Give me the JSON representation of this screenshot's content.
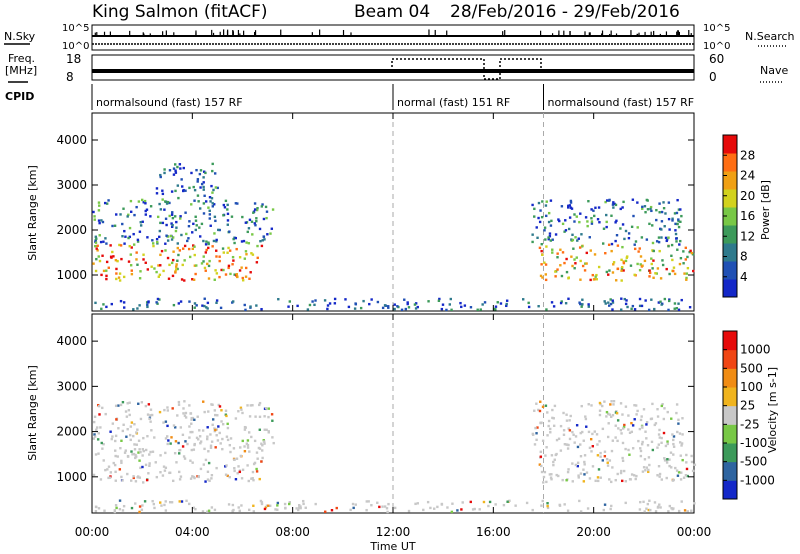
{
  "header": {
    "station": "King Salmon (fitACF)",
    "beam": "Beam 04",
    "date_range": "28/Feb/2016 - 29/Feb/2016"
  },
  "param_labels": {
    "nsky": "N.Sky",
    "nsearch": "N.Search",
    "freq_line1": "Freq.",
    "freq_line2": "[MHz]",
    "nave": "Nave",
    "cpid": "CPID"
  },
  "param_ticks": {
    "nsky_top": "10^5",
    "nsky_bottom": "10^0",
    "nsearch_top": "10^5",
    "nsearch_bottom": "10^0",
    "freq_top": "18",
    "freq_bottom": "8",
    "nave_top": "60",
    "nave_bottom": "0"
  },
  "cpid_segments": [
    {
      "label": "normalsound (fast) 157 RF",
      "start_h": 0,
      "end_h": 12
    },
    {
      "label": "normal (fast) 151 RF",
      "start_h": 12,
      "end_h": 18
    },
    {
      "label": "normalsound (fast) 157 RF",
      "start_h": 18,
      "end_h": 24
    }
  ],
  "axes": {
    "x_label": "Time UT",
    "x_ticks": [
      "00:00",
      "04:00",
      "08:00",
      "12:00",
      "16:00",
      "20:00",
      "00:00"
    ],
    "y_label": "Slant Range [km]",
    "y_ticks": [
      "1000",
      "2000",
      "3000",
      "4000"
    ]
  },
  "chart_data": [
    {
      "type": "heatmap",
      "name_panel": "power",
      "xlabel": "",
      "ylabel": "Slant Range [km]",
      "xlim_hours": [
        0,
        24
      ],
      "ylim": [
        200,
        4600
      ],
      "colorbar_label": "Power [dB]",
      "colorbar_ticks": [
        "4",
        "8",
        "12",
        "16",
        "20",
        "24",
        "28"
      ],
      "colorbar_range": [
        0,
        32
      ],
      "colorbar_colors": [
        "#1428c8",
        "#2050b4",
        "#2e7a8c",
        "#3c9a5a",
        "#78c846",
        "#d2d21e",
        "#f0a014",
        "#ff6e14",
        "#e60a0a"
      ],
      "scatter_regions": [
        {
          "start_h": 0.0,
          "end_h": 6.8,
          "range_low": 900,
          "range_high": 1700,
          "level": 0.72
        },
        {
          "start_h": 0.0,
          "end_h": 7.2,
          "range_low": 1700,
          "range_high": 2700,
          "level": 0.25
        },
        {
          "start_h": 2.5,
          "end_h": 5.0,
          "range_low": 2700,
          "range_high": 3500,
          "level": 0.2
        },
        {
          "start_h": 17.8,
          "end_h": 24.0,
          "range_low": 900,
          "range_high": 1700,
          "level": 0.65
        },
        {
          "start_h": 17.5,
          "end_h": 23.5,
          "range_low": 1700,
          "range_high": 2700,
          "level": 0.22
        },
        {
          "start_h": 0.0,
          "end_h": 24.0,
          "range_low": 250,
          "range_high": 500,
          "level": 0.15
        }
      ]
    },
    {
      "type": "heatmap",
      "name_panel": "velocity",
      "xlabel": "Time UT",
      "ylabel": "Slant Range [km]",
      "xlim_hours": [
        0,
        24
      ],
      "ylim": [
        200,
        4600
      ],
      "colorbar_label": "Velocity [m s-1]",
      "colorbar_ticks": [
        "1000",
        "500",
        "100",
        "25",
        "-25",
        "-100",
        "-500",
        "-1000"
      ],
      "colorbar_colors": [
        "#1428c8",
        "#2e64a0",
        "#3c9a5a",
        "#78c846",
        "#c8c8c8",
        "#f0b41e",
        "#f08c14",
        "#f04614",
        "#e60a0a"
      ],
      "scatter_regions": [
        {
          "start_h": 0.0,
          "end_h": 6.8,
          "range_low": 900,
          "range_high": 1700,
          "level": 0.5
        },
        {
          "start_h": 0.0,
          "end_h": 7.2,
          "range_low": 1700,
          "range_high": 2700,
          "level": 0.5
        },
        {
          "start_h": 5.5,
          "end_h": 6.5,
          "range_low": 950,
          "range_high": 1200,
          "level": 0.75
        },
        {
          "start_h": 17.8,
          "end_h": 24.0,
          "range_low": 900,
          "range_high": 1700,
          "level": 0.5
        },
        {
          "start_h": 17.5,
          "end_h": 23.5,
          "range_low": 1700,
          "range_high": 2700,
          "level": 0.5
        },
        {
          "start_h": 0.0,
          "end_h": 24.0,
          "range_low": 250,
          "range_high": 500,
          "level": 0.55
        }
      ]
    }
  ]
}
